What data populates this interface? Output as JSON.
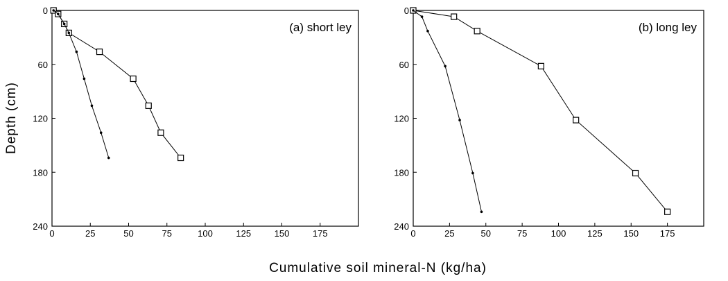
{
  "xlabel": "Cumulative soil mineral-N (kg/ha)",
  "ylabel": "Depth (cm)",
  "chart_data": [
    {
      "type": "line",
      "annotation": "(a) short ley",
      "xlim": [
        0,
        200
      ],
      "xticks": [
        0,
        25,
        50,
        75,
        100,
        125,
        150,
        175
      ],
      "ylim": [
        0,
        240
      ],
      "yticks": [
        0,
        60,
        120,
        180,
        240
      ],
      "y_inverted": true,
      "series": [
        {
          "color": "#000000",
          "marker": "square",
          "x": [
            1,
            4,
            8,
            11,
            31,
            53,
            63,
            71,
            84
          ],
          "values": [
            0,
            4,
            15,
            25,
            46,
            76,
            106,
            136,
            164
          ]
        },
        {
          "color": "#000000",
          "marker": "dot",
          "x": [
            1,
            4,
            8,
            11,
            16,
            21,
            26,
            32,
            37
          ],
          "values": [
            0,
            4,
            15,
            25,
            46,
            76,
            106,
            136,
            164
          ]
        }
      ]
    },
    {
      "type": "line",
      "annotation": "(b) long ley",
      "xlim": [
        0,
        200
      ],
      "xticks": [
        0,
        25,
        50,
        75,
        100,
        125,
        150,
        175
      ],
      "ylim": [
        0,
        240
      ],
      "yticks": [
        0,
        60,
        120,
        180,
        240
      ],
      "y_inverted": true,
      "series": [
        {
          "color": "#000000",
          "marker": "square",
          "x": [
            0,
            28,
            44,
            88,
            112,
            153,
            175
          ],
          "values": [
            0,
            7,
            23,
            62,
            122,
            181,
            224
          ]
        },
        {
          "color": "#000000",
          "marker": "dot",
          "x": [
            0,
            6,
            10,
            22,
            32,
            41,
            47
          ],
          "values": [
            0,
            7,
            23,
            62,
            122,
            181,
            224
          ]
        }
      ]
    }
  ]
}
